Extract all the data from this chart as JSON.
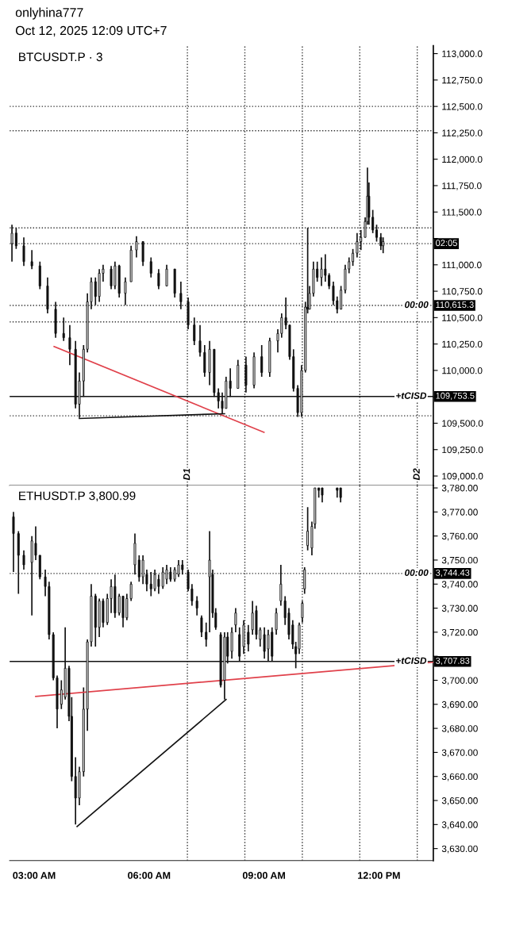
{
  "chart_data": [
    {
      "type": "candlestick",
      "title": "BTCUSDT.P · 3",
      "color": "#111111",
      "tick_labels": "y",
      "annotations": [
        "onlyhina777",
        "Oct 12, 2025 12:09 UTC+7",
        {
          "text": "02:05",
          "x": 13.42,
          "y": 111200
        },
        {
          "text": "00:00",
          "x": 12.98,
          "y": 110615.3
        },
        {
          "text": "+tCISD",
          "x": 12.84,
          "y": 109753.5
        }
      ],
      "xlim": [
        2.36,
        13.42
      ],
      "xticks": [
        {
          "value": 3,
          "label": null
        },
        {
          "value": 6,
          "label": null
        },
        {
          "value": 9,
          "label": null
        },
        {
          "value": 12,
          "label": null
        }
      ],
      "ylim": [
        108910,
        113075
      ],
      "yticks": [
        {
          "value": 109000,
          "label": "109,000.0"
        },
        {
          "value": 109250,
          "label": "109,250.0"
        },
        {
          "value": 109500,
          "label": "109,500.0"
        },
        {
          "value": 109750,
          "label": null
        },
        {
          "value": 110000,
          "label": "110,000.0"
        },
        {
          "value": 110250,
          "label": "110,250.0"
        },
        {
          "value": 110500,
          "label": "110,500.0"
        },
        {
          "value": 110750,
          "label": "110,750.0"
        },
        {
          "value": 111000,
          "label": "111,000.0"
        },
        {
          "value": 111250,
          "label": null
        },
        {
          "value": 111500,
          "label": "111,500.0"
        },
        {
          "value": 111750,
          "label": "111,750.0"
        },
        {
          "value": 112000,
          "label": "112,000.0"
        },
        {
          "value": 112250,
          "label": "112,250.0"
        },
        {
          "value": 112500,
          "label": "112,500.0"
        },
        {
          "value": 112750,
          "label": "112,750.0"
        },
        {
          "value": 113000,
          "label": "113,000.0"
        }
      ],
      "ref_lines": [
        {
          "axis": "x",
          "value": 7,
          "label": "D1",
          "line_style": "dotted",
          "color": "#333333"
        },
        {
          "axis": "x",
          "value": 8.5,
          "line_style": "dotted",
          "color": "#333333"
        },
        {
          "axis": "x",
          "value": 10,
          "line_style": "dotted",
          "color": "#333333"
        },
        {
          "axis": "x",
          "value": 11.5,
          "line_style": "dotted",
          "color": "#333333"
        },
        {
          "axis": "x",
          "value": 13,
          "label": "D2",
          "line_style": "dotted",
          "color": "#333333"
        },
        {
          "axis": "y",
          "value": 112500,
          "line_style": "dotted",
          "color": "#333333"
        },
        {
          "axis": "y",
          "value": 112270,
          "line_style": "dotted",
          "color": "#333333"
        },
        {
          "axis": "y",
          "value": 111350,
          "line_style": "dotted",
          "color": "#333333"
        },
        {
          "axis": "y",
          "value": 111200,
          "line_style": "dotted",
          "color": "#333333"
        },
        {
          "axis": "y",
          "value": 110615.3,
          "label": "110,615.3",
          "line_style": "dotted",
          "color": "#333333"
        },
        {
          "axis": "y",
          "value": 110460,
          "line_style": "dotted",
          "color": "#333333"
        },
        {
          "axis": "y",
          "value": 109753.5,
          "label": "109,753.5",
          "line_style": "solid",
          "color": "#111111"
        },
        {
          "axis": "y",
          "value": 109570,
          "line_style": "dotted",
          "color": "#333333"
        }
      ],
      "series": [
        {
          "type": "line",
          "color": "#e0404a",
          "x": [
            3.52,
            9.0
          ],
          "values": [
            110226,
            109414
          ]
        },
        {
          "type": "line",
          "color": "#111111",
          "x": [
            4.18,
            7.97
          ],
          "values": [
            109545,
            109590
          ]
        }
      ],
      "x": [
        2.42,
        2.53,
        2.73,
        2.94,
        3.15,
        3.35,
        3.56,
        3.77,
        3.93,
        4.08,
        4.18,
        4.29,
        4.39,
        4.49,
        4.6,
        4.7,
        4.8,
        5.01,
        5.11,
        5.22,
        5.38,
        5.53,
        5.67,
        5.84,
        6.05,
        6.25,
        6.46,
        6.67,
        6.83,
        7.02,
        7.18,
        7.33,
        7.45,
        7.58,
        7.7,
        7.81,
        7.91,
        8.01,
        8.12,
        8.32,
        8.53,
        8.74,
        8.94,
        9.15,
        9.36,
        9.46,
        9.57,
        9.67,
        9.77,
        9.88,
        9.98,
        10.08,
        10.14,
        10.19,
        10.29,
        10.39,
        10.5,
        10.6,
        10.7,
        10.81,
        10.91,
        11.01,
        11.12,
        11.22,
        11.32,
        11.43,
        11.53,
        11.64,
        11.7,
        11.74,
        11.84,
        11.94,
        12.05,
        12.11
      ],
      "ohlc": [
        [
          111200,
          111380,
          111030,
          111300
        ],
        [
          111300,
          111350,
          111150,
          111180
        ],
        [
          111180,
          111260,
          110990,
          111030
        ],
        [
          111030,
          111140,
          110960,
          110990
        ],
        [
          110990,
          111030,
          110770,
          110800
        ],
        [
          110800,
          110880,
          110540,
          110580
        ],
        [
          110580,
          110650,
          110310,
          110350
        ],
        [
          110350,
          110500,
          110280,
          110310
        ],
        [
          110310,
          110430,
          110050,
          110200
        ],
        [
          110200,
          110280,
          109640,
          109680
        ],
        [
          109680,
          109980,
          109550,
          109900
        ],
        [
          109900,
          110240,
          109750,
          110200
        ],
        [
          110200,
          110730,
          110170,
          110650
        ],
        [
          110650,
          110880,
          110580,
          110840
        ],
        [
          110840,
          110880,
          110620,
          110700
        ],
        [
          110700,
          110960,
          110650,
          110920
        ],
        [
          110920,
          111000,
          110840,
          110960
        ],
        [
          110960,
          110990,
          110770,
          110800
        ],
        [
          110800,
          111030,
          110770,
          110990
        ],
        [
          110990,
          111000,
          110690,
          110730
        ],
        [
          110730,
          110880,
          110620,
          110840
        ],
        [
          110840,
          111180,
          110840,
          111140
        ],
        [
          111140,
          111270,
          111070,
          111220
        ],
        [
          111220,
          111220,
          110990,
          111030
        ],
        [
          111030,
          111070,
          110880,
          110920
        ],
        [
          110920,
          110960,
          110770,
          110800
        ],
        [
          110800,
          111000,
          110800,
          110960
        ],
        [
          110960,
          110960,
          110690,
          110730
        ],
        [
          110730,
          110840,
          110580,
          110650
        ],
        [
          110650,
          110690,
          110390,
          110430
        ],
        [
          110430,
          110500,
          110240,
          110280
        ],
        [
          110280,
          110430,
          110130,
          110170
        ],
        [
          110170,
          110240,
          109940,
          109980
        ],
        [
          109980,
          110280,
          109860,
          110200
        ],
        [
          110200,
          110200,
          109750,
          109790
        ],
        [
          109790,
          109830,
          109640,
          109710
        ],
        [
          109710,
          109790,
          109590,
          109640
        ],
        [
          109640,
          109940,
          109640,
          109900
        ],
        [
          109900,
          110020,
          109750,
          109830
        ],
        [
          109830,
          110100,
          109830,
          110050
        ],
        [
          110050,
          110130,
          109790,
          109860
        ],
        [
          109860,
          110170,
          109830,
          110130
        ],
        [
          110130,
          110240,
          109940,
          109980
        ],
        [
          109980,
          110310,
          109940,
          110280
        ],
        [
          110280,
          110390,
          110170,
          110350
        ],
        [
          110350,
          110540,
          110310,
          110500
        ],
        [
          110500,
          110690,
          110390,
          110430
        ],
        [
          110430,
          110430,
          110100,
          110130
        ],
        [
          110130,
          110200,
          109800,
          109830
        ],
        [
          109830,
          109860,
          109560,
          109600
        ],
        [
          109600,
          110050,
          109560,
          110000
        ],
        [
          110000,
          110650,
          109980,
          110600
        ],
        [
          110600,
          111350,
          110540,
          110580
        ],
        [
          110580,
          110800,
          110580,
          110730
        ],
        [
          110730,
          111030,
          110700,
          110960
        ],
        [
          110960,
          111030,
          110840,
          110880
        ],
        [
          110880,
          111070,
          110800,
          110960
        ],
        [
          110960,
          111100,
          110840,
          110900
        ],
        [
          110900,
          110920,
          110770,
          110800
        ],
        [
          110800,
          110840,
          110620,
          110660
        ],
        [
          110660,
          110700,
          110540,
          110580
        ],
        [
          110580,
          110800,
          110580,
          110760
        ],
        [
          110760,
          111000,
          110730,
          110960
        ],
        [
          110960,
          111070,
          110920,
          111030
        ],
        [
          111030,
          111150,
          110990,
          111110
        ],
        [
          111110,
          111300,
          111070,
          111220
        ],
        [
          111220,
          111330,
          111140,
          111260
        ],
        [
          111260,
          111450,
          111260,
          111410
        ],
        [
          111410,
          111920,
          111380,
          111650
        ],
        [
          111650,
          111780,
          111380,
          111450
        ],
        [
          111450,
          111520,
          111300,
          111330
        ],
        [
          111330,
          111380,
          111220,
          111260
        ],
        [
          111260,
          111300,
          111140,
          111180
        ],
        [
          111180,
          111260,
          111110,
          111220
        ]
      ]
    },
    {
      "type": "candlestick",
      "title": "ETHUSDT.P 3,800.99",
      "color": "#111111",
      "annotations": [
        {
          "text": "00:00",
          "x": 12.98,
          "y": 3744.43
        },
        {
          "text": "+tCISD",
          "x": 12.84,
          "y": 3707.83
        }
      ],
      "xlim": [
        2.36,
        13.42
      ],
      "xticks": [
        {
          "value": 3,
          "label": "03:00 AM"
        },
        {
          "value": 6,
          "label": "06:00 AM"
        },
        {
          "value": 9,
          "label": "09:00 AM"
        },
        {
          "value": 12,
          "label": "12:00 PM"
        }
      ],
      "ylim": [
        3625,
        3781
      ],
      "yticks": [
        {
          "value": 3630,
          "label": "3,630.00"
        },
        {
          "value": 3640,
          "label": "3,640.00"
        },
        {
          "value": 3650,
          "label": "3,650.00"
        },
        {
          "value": 3660,
          "label": "3,660.00"
        },
        {
          "value": 3670,
          "label": "3,670.00"
        },
        {
          "value": 3680,
          "label": "3,680.00"
        },
        {
          "value": 3690,
          "label": "3,690.00"
        },
        {
          "value": 3700,
          "label": "3,700.00"
        },
        {
          "value": 3710,
          "label": null
        },
        {
          "value": 3720,
          "label": "3,720.00"
        },
        {
          "value": 3730,
          "label": "3,730.00"
        },
        {
          "value": 3740,
          "label": "3,740.00"
        },
        {
          "value": 3750,
          "label": "3,750.00"
        },
        {
          "value": 3760,
          "label": "3,760.00"
        },
        {
          "value": 3770,
          "label": "3,770.00"
        },
        {
          "value": 3780,
          "label": "3,780.00"
        }
      ],
      "ref_lines": [
        {
          "axis": "x",
          "value": 7,
          "line_style": "dotted",
          "color": "#333333"
        },
        {
          "axis": "x",
          "value": 8.5,
          "line_style": "dotted",
          "color": "#333333"
        },
        {
          "axis": "x",
          "value": 10,
          "line_style": "dotted",
          "color": "#333333"
        },
        {
          "axis": "x",
          "value": 11.5,
          "line_style": "dotted",
          "color": "#333333"
        },
        {
          "axis": "x",
          "value": 13,
          "line_style": "dotted",
          "color": "#333333"
        },
        {
          "axis": "y",
          "value": 3744.43,
          "label": "3,744.43",
          "line_style": "dotted",
          "color": "#333333"
        },
        {
          "axis": "y",
          "value": 3707.83,
          "label": "3,707.83",
          "line_style": "solid",
          "color": "#111111"
        }
      ],
      "series": [
        {
          "type": "line",
          "color": "#e0404a",
          "x": [
            3.04,
            13.42
          ],
          "values": [
            3693.3,
            3707.5
          ]
        },
        {
          "type": "line",
          "color": "#111111",
          "x": [
            4.12,
            8.01
          ],
          "values": [
            3639.2,
            3692
          ]
        }
      ],
      "x": [
        2.46,
        2.59,
        2.73,
        2.94,
        3.04,
        3.15,
        3.29,
        3.39,
        3.5,
        3.6,
        3.71,
        3.81,
        3.91,
        3.98,
        4.08,
        4.18,
        4.29,
        4.39,
        4.49,
        4.6,
        4.7,
        4.8,
        4.91,
        5.01,
        5.11,
        5.22,
        5.32,
        5.42,
        5.53,
        5.63,
        5.74,
        5.84,
        5.94,
        6.05,
        6.15,
        6.25,
        6.36,
        6.46,
        6.56,
        6.67,
        6.77,
        6.87,
        7.02,
        7.12,
        7.25,
        7.37,
        7.49,
        7.58,
        7.66,
        7.74,
        7.87,
        7.97,
        8.05,
        8.16,
        8.26,
        8.36,
        8.47,
        8.59,
        8.7,
        8.8,
        8.9,
        9.01,
        9.11,
        9.21,
        9.32,
        9.44,
        9.55,
        9.65,
        9.75,
        9.83,
        9.92,
        10.0,
        10.06,
        10.14,
        10.25,
        10.33,
        10.43,
        10.52,
        10.91,
        11.0
      ],
      "ohlc": [
        [
          3768,
          3770,
          3745,
          3761
        ],
        [
          3761,
          3762,
          3736,
          3752
        ],
        [
          3752,
          3754,
          3746,
          3748
        ],
        [
          3749,
          3760,
          3727,
          3758
        ],
        [
          3757,
          3764,
          3750,
          3752
        ],
        [
          3752,
          3752,
          3742,
          3743
        ],
        [
          3743,
          3746,
          3735,
          3739
        ],
        [
          3739,
          3741,
          3717,
          3719
        ],
        [
          3719,
          3720,
          3700,
          3701
        ],
        [
          3701,
          3702,
          3680,
          3688
        ],
        [
          3690,
          3700,
          3688,
          3696
        ],
        [
          3693,
          3722,
          3692,
          3705
        ],
        [
          3705,
          3706,
          3683,
          3685
        ],
        [
          3685,
          3693,
          3658,
          3660
        ],
        [
          3660,
          3668,
          3640,
          3651
        ],
        [
          3651,
          3664,
          3648,
          3662
        ],
        [
          3662,
          3697,
          3660,
          3688
        ],
        [
          3688,
          3717,
          3679,
          3716
        ],
        [
          3716,
          3740,
          3714,
          3735
        ],
        [
          3735,
          3736,
          3714,
          3722
        ],
        [
          3722,
          3734,
          3718,
          3733
        ],
        [
          3733,
          3734,
          3722,
          3724
        ],
        [
          3724,
          3736,
          3723,
          3734
        ],
        [
          3734,
          3742,
          3728,
          3739
        ],
        [
          3739,
          3744,
          3726,
          3728
        ],
        [
          3728,
          3736,
          3727,
          3735
        ],
        [
          3735,
          3735,
          3722,
          3726
        ],
        [
          3726,
          3736,
          3725,
          3734
        ],
        [
          3734,
          3741,
          3733,
          3740
        ],
        [
          3748,
          3761,
          3744,
          3757
        ],
        [
          3750,
          3752,
          3741,
          3743
        ],
        [
          3743,
          3752,
          3740,
          3750
        ],
        [
          3744,
          3746,
          3737,
          3740
        ],
        [
          3740,
          3745,
          3735,
          3738
        ],
        [
          3738,
          3746,
          3737,
          3744
        ],
        [
          3742,
          3744,
          3736,
          3739
        ],
        [
          3739,
          3747,
          3738,
          3745
        ],
        [
          3742,
          3748,
          3740,
          3746
        ],
        [
          3745,
          3747,
          3741,
          3742
        ],
        [
          3742,
          3747,
          3741,
          3746
        ],
        [
          3744,
          3750,
          3743,
          3748
        ],
        [
          3748,
          3750,
          3744,
          3746
        ],
        [
          3745,
          3746,
          3737,
          3738
        ],
        [
          3738,
          3740,
          3731,
          3733
        ],
        [
          3733,
          3735,
          3727,
          3730
        ],
        [
          3726,
          3727,
          3718,
          3720
        ],
        [
          3720,
          3724,
          3714,
          3717
        ],
        [
          3743,
          3762,
          3720,
          3750
        ],
        [
          3744,
          3746,
          3726,
          3728
        ],
        [
          3728,
          3730,
          3721,
          3722
        ],
        [
          3719,
          3720,
          3697,
          3698
        ],
        [
          3700,
          3720,
          3692,
          3718
        ],
        [
          3718,
          3720,
          3707,
          3710
        ],
        [
          3712,
          3722,
          3709,
          3720
        ],
        [
          3723,
          3730,
          3720,
          3728
        ],
        [
          3719,
          3722,
          3708,
          3710
        ],
        [
          3714,
          3725,
          3711,
          3723
        ],
        [
          3720,
          3723,
          3712,
          3715
        ],
        [
          3721,
          3733,
          3719,
          3728
        ],
        [
          3729,
          3731,
          3717,
          3719
        ],
        [
          3717,
          3722,
          3714,
          3721
        ],
        [
          3719,
          3722,
          3709,
          3712
        ],
        [
          3713,
          3721,
          3708,
          3719
        ],
        [
          3720,
          3722,
          3708,
          3710
        ],
        [
          3721,
          3730,
          3719,
          3728
        ],
        [
          3733,
          3748,
          3731,
          3740
        ],
        [
          3733,
          3735,
          3723,
          3726
        ],
        [
          3728,
          3730,
          3717,
          3719
        ],
        [
          3723,
          3725,
          3713,
          3715
        ],
        [
          3714,
          3716,
          3705,
          3711
        ],
        [
          3713,
          3724,
          3711,
          3723
        ],
        [
          3726,
          3733,
          3724,
          3732
        ],
        [
          3738,
          3747,
          3736,
          3746
        ],
        [
          3756,
          3772,
          3754,
          3762
        ],
        [
          3755,
          3766,
          3752,
          3764
        ],
        [
          3765,
          3780,
          3763,
          3780
        ],
        [
          3780,
          3780,
          3776,
          3779
        ],
        [
          3780,
          3780,
          3774,
          3777
        ],
        [
          3780,
          3780,
          3776,
          3779
        ],
        [
          3780,
          3780,
          3774,
          3776
        ]
      ]
    }
  ]
}
